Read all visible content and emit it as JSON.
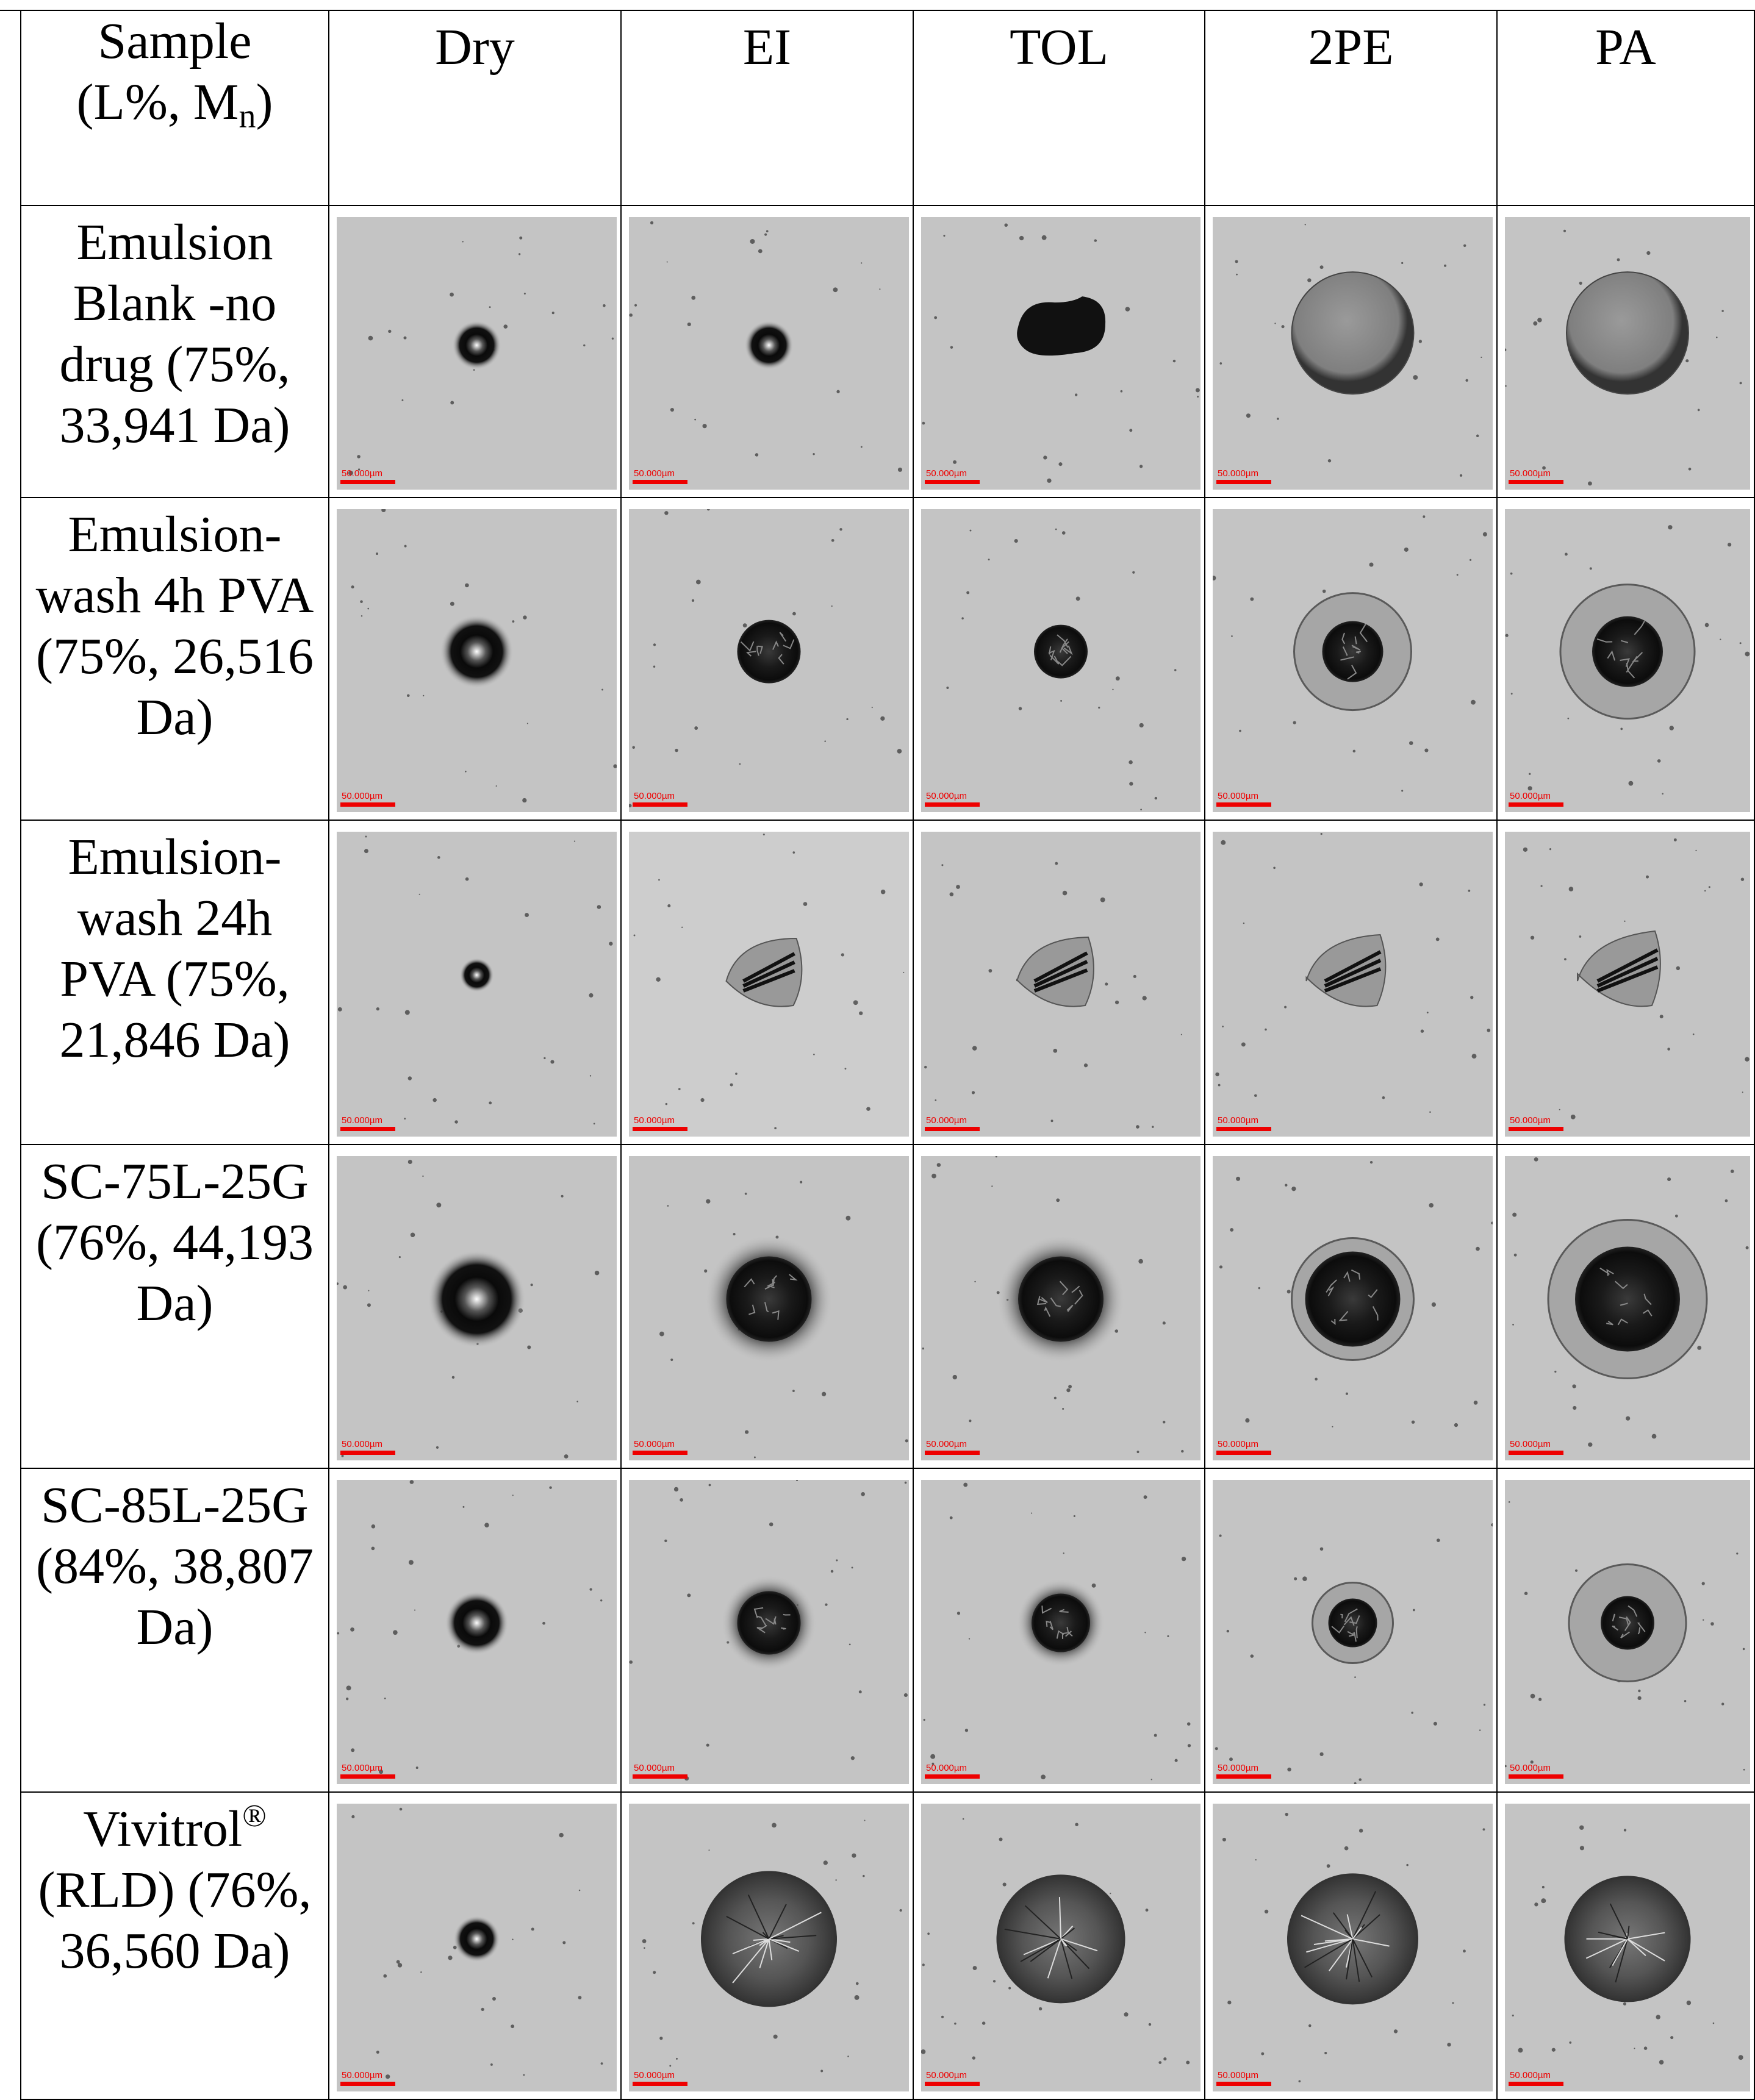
{
  "table": {
    "header": {
      "sample": [
        "Sample",
        "(L%, M",
        "n",
        ")"
      ],
      "columns": [
        "Dry",
        "EI",
        "TOL",
        "2PE",
        "PA"
      ]
    },
    "rows": [
      {
        "label": "Emulsion Blank -no drug (75%, 33,941 Da)"
      },
      {
        "label": "Emulsion-wash 4h PVA (75%, 26,516 Da)"
      },
      {
        "label": "Emulsion-wash 24h PVA (75%, 21,846 Da)"
      },
      {
        "label": "SC-75L-25G (76%, 44,193 Da)"
      },
      {
        "label": "SC-85L-25G (84%, 38,807 Da)"
      },
      {
        "label": "Vivitrol",
        "mark": "®",
        "rest": "(RLD) (76%, 36,560 Da)"
      }
    ],
    "scale_label": "50.000µm"
  }
}
